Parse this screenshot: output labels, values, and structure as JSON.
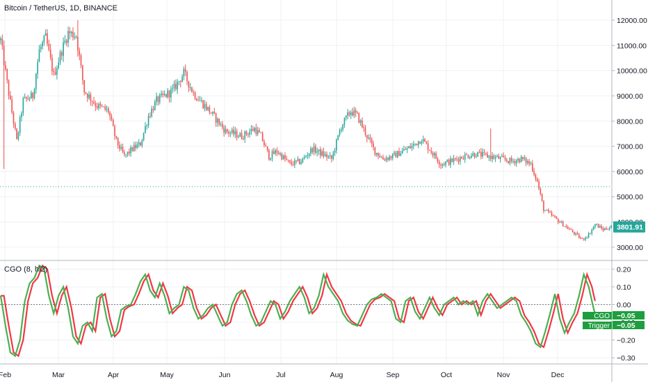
{
  "header": {
    "symbol": "Bitcoin / TetherUS, 1D, BINANCE"
  },
  "indicator": {
    "label": "CGO (8, hl2)"
  },
  "colors": {
    "up": "#26a69a",
    "down": "#ef5350",
    "wick": "#555555",
    "cgo_line": "#4caf50",
    "trigger_line": "#f23645",
    "tag_price": "#26a69a",
    "tag_cgo": "#1e9e3e",
    "dotted": "#26a69a",
    "grid": "#eef0f3"
  },
  "chart_data": [
    {
      "type": "candlestick",
      "title": "Bitcoin / TetherUS, 1D, BINANCE",
      "x_ticks": [
        "Feb",
        "Mar",
        "Apr",
        "May",
        "Jun",
        "Jul",
        "Aug",
        "Sep",
        "Oct",
        "Nov",
        "Dec"
      ],
      "y_ticks": [
        "12000.00",
        "11000.00",
        "10000.00",
        "9000.00",
        "8000.00",
        "7000.00",
        "6000.00",
        "5000.00",
        "4000.00",
        "3000.00"
      ],
      "ylim": [
        2500,
        12800
      ],
      "last_price": "3801.91",
      "dotted_level": 5400,
      "price_path": [
        [
          0,
          11200
        ],
        [
          4,
          9500
        ],
        [
          10,
          7200
        ],
        [
          14,
          8800
        ],
        [
          20,
          9000
        ],
        [
          24,
          10800
        ],
        [
          28,
          11300
        ],
        [
          33,
          9800
        ],
        [
          38,
          10800
        ],
        [
          42,
          11500
        ],
        [
          47,
          11400
        ],
        [
          52,
          9200
        ],
        [
          60,
          8600
        ],
        [
          67,
          8400
        ],
        [
          72,
          7200
        ],
        [
          77,
          6600
        ],
        [
          82,
          6900
        ],
        [
          87,
          7100
        ],
        [
          92,
          8200
        ],
        [
          97,
          8800
        ],
        [
          102,
          9000
        ],
        [
          107,
          9200
        ],
        [
          114,
          9900
        ],
        [
          120,
          9100
        ],
        [
          130,
          8400
        ],
        [
          140,
          7600
        ],
        [
          150,
          7400
        ],
        [
          158,
          7700
        ],
        [
          162,
          7400
        ],
        [
          167,
          6600
        ],
        [
          172,
          6800
        ],
        [
          180,
          6300
        ],
        [
          187,
          6400
        ],
        [
          194,
          6900
        ],
        [
          200,
          6700
        ],
        [
          206,
          6500
        ],
        [
          212,
          7800
        ],
        [
          218,
          8400
        ],
        [
          222,
          8200
        ],
        [
          228,
          7400
        ],
        [
          233,
          6800
        ],
        [
          238,
          6500
        ],
        [
          244,
          6600
        ],
        [
          250,
          6800
        ],
        [
          256,
          7000
        ],
        [
          262,
          7300
        ],
        [
          268,
          6800
        ],
        [
          274,
          6300
        ],
        [
          280,
          6400
        ],
        [
          288,
          6600
        ],
        [
          296,
          6700
        ],
        [
          304,
          6600
        ],
        [
          312,
          6500
        ],
        [
          318,
          6400
        ],
        [
          324,
          6500
        ],
        [
          330,
          6300
        ],
        [
          334,
          5600
        ],
        [
          338,
          4500
        ],
        [
          344,
          4200
        ],
        [
          350,
          3900
        ],
        [
          356,
          3600
        ],
        [
          362,
          3300
        ],
        [
          366,
          3500
        ],
        [
          370,
          3900
        ],
        [
          375,
          3700
        ],
        [
          380,
          3800
        ]
      ],
      "spikes": [
        {
          "day": 2,
          "low": 6100
        },
        {
          "day": 48,
          "high": 12000
        },
        {
          "day": 305,
          "high": 7700
        }
      ]
    },
    {
      "type": "line",
      "title": "CGO (8, hl2)",
      "x_ticks": [
        "Feb",
        "Mar",
        "Apr",
        "May",
        "Jun",
        "Jul",
        "Aug",
        "Sep",
        "Oct",
        "Nov",
        "Dec"
      ],
      "y_ticks": [
        "0.20",
        "0.10",
        "0.00",
        "-0.10",
        "-0.20",
        "-0.30"
      ],
      "ylim": [
        -0.335,
        0.245
      ],
      "series": [
        {
          "name": "CGO",
          "value": "-0.05"
        },
        {
          "name": "Trigger",
          "value": "-0.05"
        }
      ],
      "cgo_path": [
        [
          0,
          0.05
        ],
        [
          3,
          -0.12
        ],
        [
          6,
          -0.27
        ],
        [
          9,
          -0.29
        ],
        [
          12,
          -0.2
        ],
        [
          15,
          0.02
        ],
        [
          18,
          0.12
        ],
        [
          21,
          0.15
        ],
        [
          24,
          0.22
        ],
        [
          27,
          0.2
        ],
        [
          30,
          0.05
        ],
        [
          33,
          -0.05
        ],
        [
          36,
          0.05
        ],
        [
          39,
          0.1
        ],
        [
          42,
          -0.02
        ],
        [
          45,
          -0.18
        ],
        [
          48,
          -0.22
        ],
        [
          51,
          -0.12
        ],
        [
          54,
          -0.1
        ],
        [
          57,
          -0.15
        ],
        [
          60,
          0.04
        ],
        [
          63,
          0.06
        ],
        [
          66,
          -0.08
        ],
        [
          69,
          -0.18
        ],
        [
          72,
          -0.15
        ],
        [
          75,
          -0.03
        ],
        [
          78,
          -0.01
        ],
        [
          81,
          0.0
        ],
        [
          84,
          0.06
        ],
        [
          87,
          0.13
        ],
        [
          90,
          0.17
        ],
        [
          93,
          0.08
        ],
        [
          96,
          0.04
        ],
        [
          99,
          0.12
        ],
        [
          102,
          0.05
        ],
        [
          105,
          -0.05
        ],
        [
          108,
          -0.02
        ],
        [
          111,
          0.0
        ],
        [
          114,
          0.1
        ],
        [
          117,
          0.08
        ],
        [
          120,
          -0.02
        ],
        [
          123,
          -0.08
        ],
        [
          126,
          -0.06
        ],
        [
          129,
          -0.02
        ],
        [
          132,
          0.0
        ],
        [
          135,
          -0.06
        ],
        [
          138,
          -0.12
        ],
        [
          141,
          -0.1
        ],
        [
          144,
          0.0
        ],
        [
          147,
          0.06
        ],
        [
          150,
          0.08
        ],
        [
          153,
          0.02
        ],
        [
          156,
          -0.06
        ],
        [
          159,
          -0.12
        ],
        [
          162,
          -0.1
        ],
        [
          165,
          -0.04
        ],
        [
          168,
          0.02
        ],
        [
          171,
          0.0
        ],
        [
          174,
          -0.08
        ],
        [
          177,
          -0.04
        ],
        [
          180,
          0.02
        ],
        [
          183,
          0.06
        ],
        [
          186,
          0.1
        ],
        [
          189,
          0.04
        ],
        [
          192,
          -0.05
        ],
        [
          195,
          -0.02
        ],
        [
          198,
          0.05
        ],
        [
          201,
          0.17
        ],
        [
          204,
          0.1
        ],
        [
          207,
          0.06
        ],
        [
          210,
          0.02
        ],
        [
          213,
          -0.05
        ],
        [
          216,
          -0.09
        ],
        [
          219,
          -0.11
        ],
        [
          222,
          -0.12
        ],
        [
          225,
          -0.06
        ],
        [
          228,
          0.0
        ],
        [
          231,
          0.03
        ],
        [
          234,
          0.04
        ],
        [
          237,
          0.06
        ],
        [
          240,
          0.04
        ],
        [
          243,
          0.02
        ],
        [
          246,
          -0.08
        ],
        [
          249,
          -0.1
        ],
        [
          252,
          0.02
        ],
        [
          255,
          0.04
        ],
        [
          258,
          -0.04
        ],
        [
          261,
          -0.08
        ],
        [
          264,
          -0.02
        ],
        [
          267,
          0.04
        ],
        [
          270,
          -0.02
        ],
        [
          273,
          -0.06
        ],
        [
          276,
          0.0
        ],
        [
          279,
          0.02
        ],
        [
          282,
          0.04
        ],
        [
          285,
          0.0
        ],
        [
          288,
          0.02
        ],
        [
          291,
          0.0
        ],
        [
          294,
          0.02
        ],
        [
          297,
          -0.06
        ],
        [
          300,
          0.02
        ],
        [
          303,
          0.06
        ],
        [
          306,
          0.02
        ],
        [
          309,
          -0.02
        ],
        [
          312,
          0.0
        ],
        [
          315,
          0.02
        ],
        [
          318,
          0.04
        ],
        [
          321,
          0.02
        ],
        [
          324,
          -0.06
        ],
        [
          327,
          -0.1
        ],
        [
          330,
          -0.15
        ],
        [
          333,
          -0.22
        ],
        [
          336,
          -0.24
        ],
        [
          339,
          -0.15
        ],
        [
          342,
          -0.05
        ],
        [
          345,
          0.06
        ],
        [
          348,
          -0.08
        ],
        [
          351,
          -0.16
        ],
        [
          354,
          -0.1
        ],
        [
          357,
          -0.05
        ],
        [
          360,
          0.05
        ],
        [
          363,
          0.17
        ],
        [
          366,
          0.1
        ],
        [
          369,
          -0.02
        ],
        [
          370,
          -0.05
        ]
      ]
    }
  ]
}
